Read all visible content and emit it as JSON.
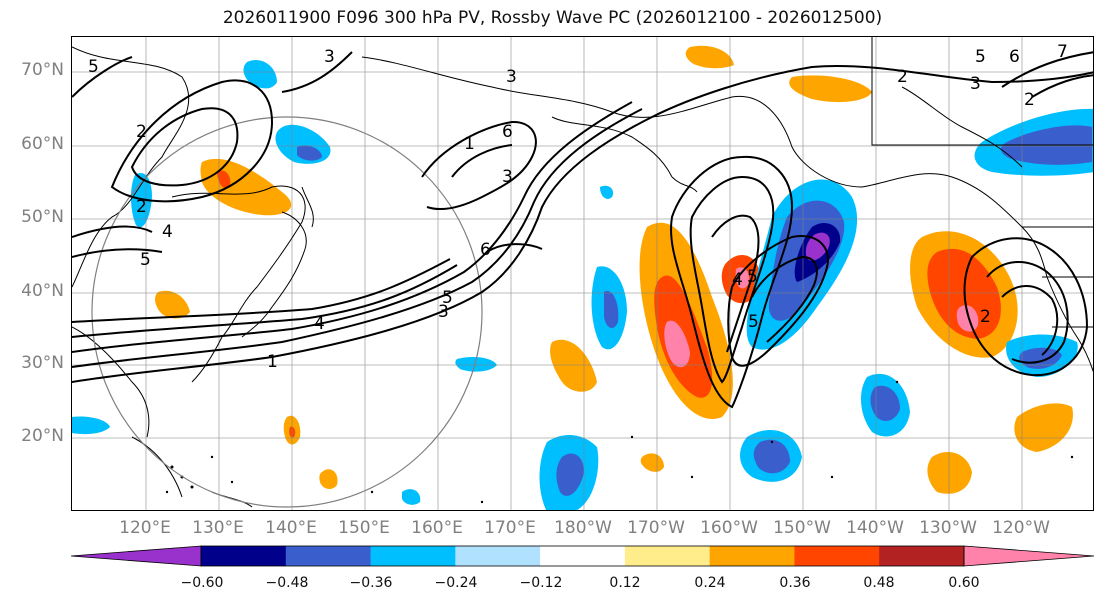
{
  "title": "2026011900 F096 300 hPa PV, Rossby Wave PC (2026012100 - 2026012500)",
  "lat_labels": [
    "70°N",
    "60°N",
    "50°N",
    "40°N",
    "30°N",
    "20°N"
  ],
  "lon_labels": [
    "120°E",
    "130°E",
    "140°E",
    "150°E",
    "160°E",
    "170°E",
    "180°W",
    "170°W",
    "160°W",
    "150°W",
    "140°W",
    "130°W",
    "120°W"
  ],
  "colorbar": {
    "ticks": [
      "−0.60",
      "−0.48",
      "−0.36",
      "−0.24",
      "−0.12",
      "0.12",
      "0.24",
      "0.36",
      "0.48",
      "0.60"
    ],
    "colors": [
      "#9932CC",
      "#00008B",
      "#3A5FCD",
      "#00BFFF",
      "#B0E2FF",
      "#FFFFFF",
      "#FFEC8B",
      "#FFA500",
      "#FF4500",
      "#B22222",
      "#FF82AB"
    ],
    "extend": "both"
  },
  "contour_labels": [
    "5",
    "2",
    "3",
    "3",
    "1",
    "6",
    "4",
    "5",
    "2",
    "4",
    "5",
    "6",
    "5",
    "3",
    "4",
    "1",
    "5",
    "2",
    "6",
    "5",
    "3",
    "7",
    "2",
    "3",
    "2"
  ],
  "colors": {
    "land": "#000000",
    "grid": "#808080",
    "contour": "#000000",
    "axis_label": "#808080"
  }
}
